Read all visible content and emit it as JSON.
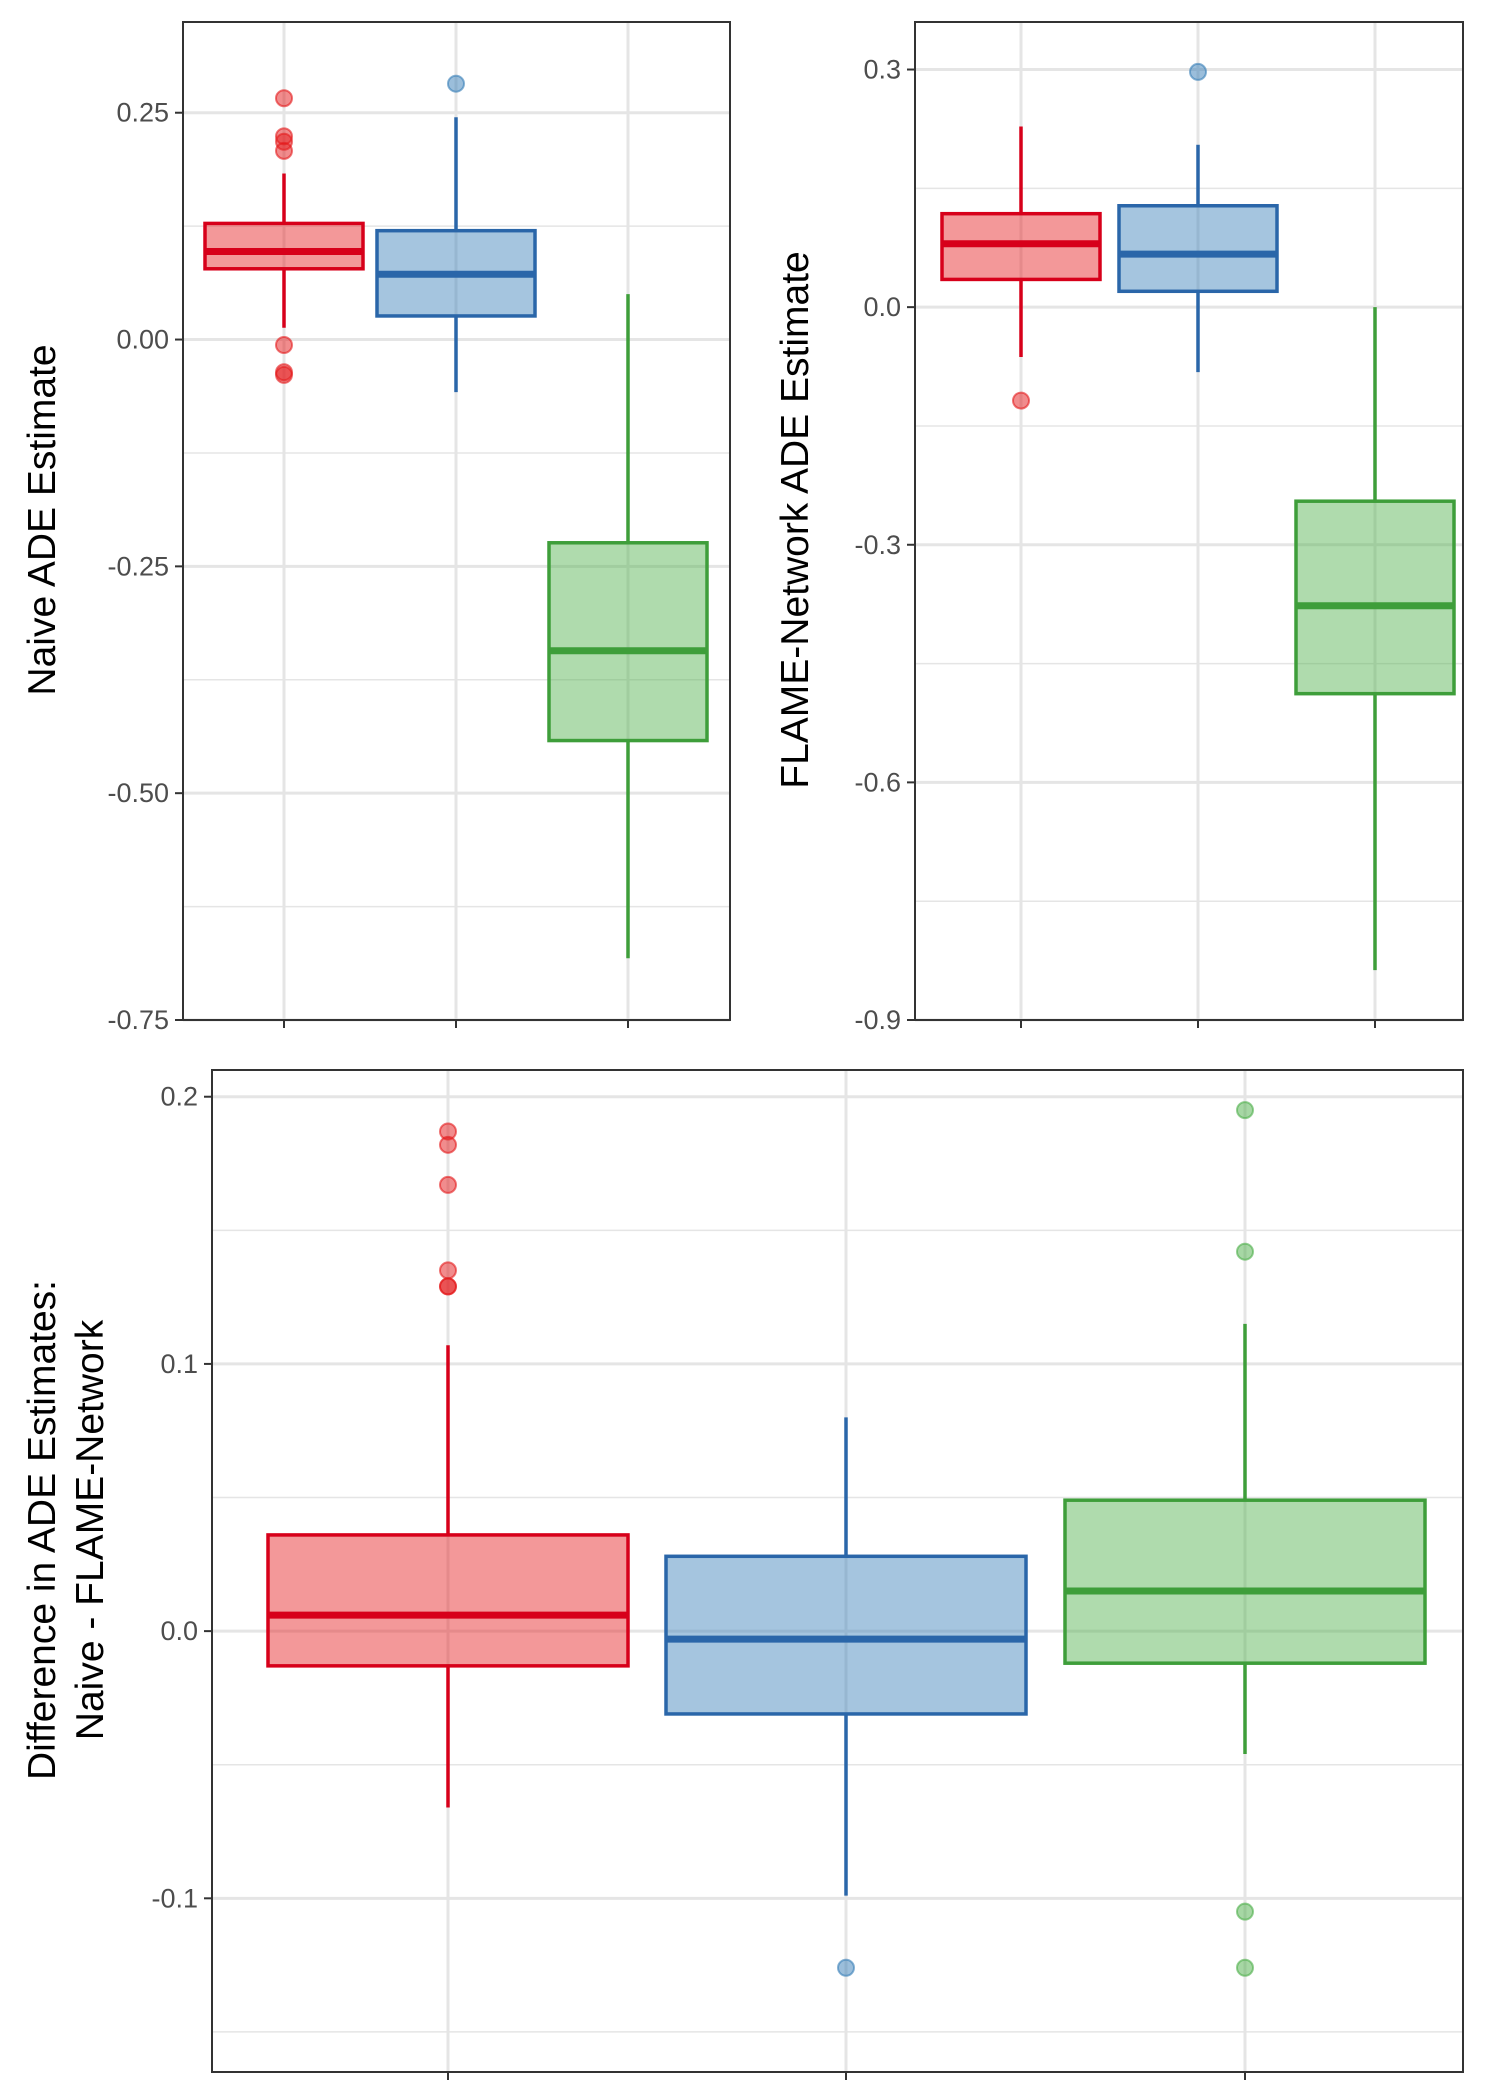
{
  "colors": {
    "red": "#E41A1C",
    "blue": "#377EB8",
    "green": "#4DAF4A",
    "red_line": "#D7001A",
    "blue_line": "#2A66A9",
    "green_line": "#3E9E3A",
    "grid": "#E5E5E5",
    "panel_border": "#333333"
  },
  "chart_data": [
    {
      "id": "naive",
      "type": "boxplot",
      "ylabel": "Naive ADE Estimate",
      "xlabel": "",
      "ylim": [
        -0.75,
        0.35
      ],
      "y_ticks": [
        -0.75,
        -0.5,
        -0.25,
        0.0,
        0.25
      ],
      "y_tick_labels": [
        "-0.75",
        "-0.50",
        "-0.25",
        "0.00",
        "0.25"
      ],
      "y_minor": [
        -0.625,
        -0.375,
        -0.125,
        0.125
      ],
      "grid": true,
      "legend": "none",
      "groups": [
        {
          "color": "red",
          "whisker_low": 0.013,
          "q1": 0.078,
          "median": 0.097,
          "q3": 0.128,
          "whisker_high": 0.183,
          "outliers": [
            0.266,
            0.224,
            0.218,
            0.208,
            -0.006,
            -0.036,
            -0.039
          ]
        },
        {
          "color": "blue",
          "whisker_low": -0.058,
          "q1": 0.026,
          "median": 0.072,
          "q3": 0.12,
          "whisker_high": 0.245,
          "outliers": [
            0.282
          ]
        },
        {
          "color": "green",
          "whisker_low": -0.682,
          "q1": -0.442,
          "median": -0.343,
          "q3": -0.224,
          "whisker_high": 0.05,
          "outliers": []
        }
      ]
    },
    {
      "id": "flame",
      "type": "boxplot",
      "ylabel": "FLAME-Network ADE Estimate",
      "xlabel": "",
      "ylim": [
        -0.9,
        0.36
      ],
      "y_ticks": [
        -0.9,
        -0.6,
        -0.3,
        0.0,
        0.3
      ],
      "y_tick_labels": [
        "-0.9",
        "-0.6",
        "-0.3",
        "0.0",
        "0.3"
      ],
      "y_minor": [
        -0.75,
        -0.45,
        -0.15,
        0.15
      ],
      "grid": true,
      "legend": "none",
      "groups": [
        {
          "color": "red",
          "whisker_low": -0.063,
          "q1": 0.035,
          "median": 0.08,
          "q3": 0.118,
          "whisker_high": 0.228,
          "outliers": [
            -0.118
          ]
        },
        {
          "color": "blue",
          "whisker_low": -0.082,
          "q1": 0.02,
          "median": 0.067,
          "q3": 0.128,
          "whisker_high": 0.205,
          "outliers": [
            0.297
          ]
        },
        {
          "color": "green",
          "whisker_low": -0.837,
          "q1": -0.488,
          "median": -0.377,
          "q3": -0.245,
          "whisker_high": 0.0,
          "outliers": []
        }
      ]
    },
    {
      "id": "difference",
      "type": "boxplot",
      "ylabel": "Difference in ADE Estimates:",
      "ylabel2": "Naive - FLAME-Network",
      "xlabel": "",
      "ylim": [
        -0.165,
        0.21
      ],
      "y_ticks": [
        -0.1,
        0.0,
        0.1,
        0.2
      ],
      "y_tick_labels": [
        "-0.1",
        "0.0",
        "0.1",
        "0.2"
      ],
      "y_minor": [
        -0.15,
        -0.05,
        0.05,
        0.15
      ],
      "grid": true,
      "legend": "none",
      "groups": [
        {
          "color": "red",
          "whisker_low": -0.066,
          "q1": -0.013,
          "median": 0.006,
          "q3": 0.036,
          "whisker_high": 0.107,
          "outliers": [
            0.187,
            0.182,
            0.167,
            0.135,
            0.129,
            0.129
          ]
        },
        {
          "color": "blue",
          "whisker_low": -0.099,
          "q1": -0.031,
          "median": -0.003,
          "q3": 0.028,
          "whisker_high": 0.08,
          "outliers": [
            -0.126
          ]
        },
        {
          "color": "green",
          "whisker_low": -0.046,
          "q1": -0.012,
          "median": 0.015,
          "q3": 0.049,
          "whisker_high": 0.115,
          "outliers": [
            0.195,
            0.142,
            -0.105,
            -0.126
          ]
        }
      ]
    }
  ]
}
